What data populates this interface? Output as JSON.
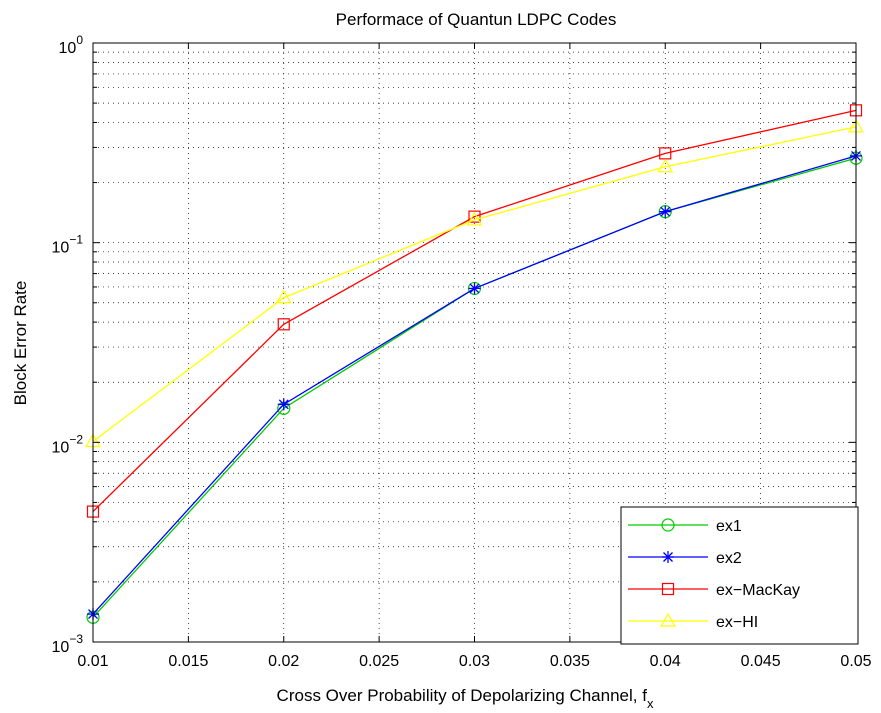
{
  "chart_data": {
    "type": "line",
    "title": "Performace of Quantun LDPC Codes",
    "xlabel": "Cross Over Probability of Depolarizing Channel, f",
    "xlabel_subscript": "x",
    "ylabel": "Block Error Rate",
    "x": [
      0.01,
      0.02,
      0.03,
      0.04,
      0.05
    ],
    "xlim": [
      0.01,
      0.05
    ],
    "ylim": [
      0.001,
      1
    ],
    "yscale": "log",
    "grid": true,
    "legend_position": "bottom-right",
    "x_ticks": [
      "0.01",
      "0.015",
      "0.02",
      "0.025",
      "0.03",
      "0.035",
      "0.04",
      "0.045",
      "0.05"
    ],
    "y_ticks": [
      {
        "base": "10",
        "exp": "-3"
      },
      {
        "base": "10",
        "exp": "-2"
      },
      {
        "base": "10",
        "exp": "-1"
      },
      {
        "base": "10",
        "exp": "0"
      }
    ],
    "series": [
      {
        "name": "ex1",
        "color": "#00cc00",
        "marker": "circle",
        "values": [
          0.00133,
          0.0148,
          0.059,
          0.143,
          0.265
        ]
      },
      {
        "name": "ex2",
        "color": "#0000ff",
        "marker": "asterisk",
        "values": [
          0.00138,
          0.0155,
          0.059,
          0.143,
          0.272
        ]
      },
      {
        "name": "ex−MacKay",
        "color": "#ff0000",
        "marker": "square",
        "values": [
          0.0045,
          0.039,
          0.135,
          0.28,
          0.46
        ]
      },
      {
        "name": "ex−HI",
        "color": "#ffff00",
        "marker": "triangle",
        "values": [
          0.0101,
          0.053,
          0.13,
          0.24,
          0.38
        ]
      }
    ]
  }
}
